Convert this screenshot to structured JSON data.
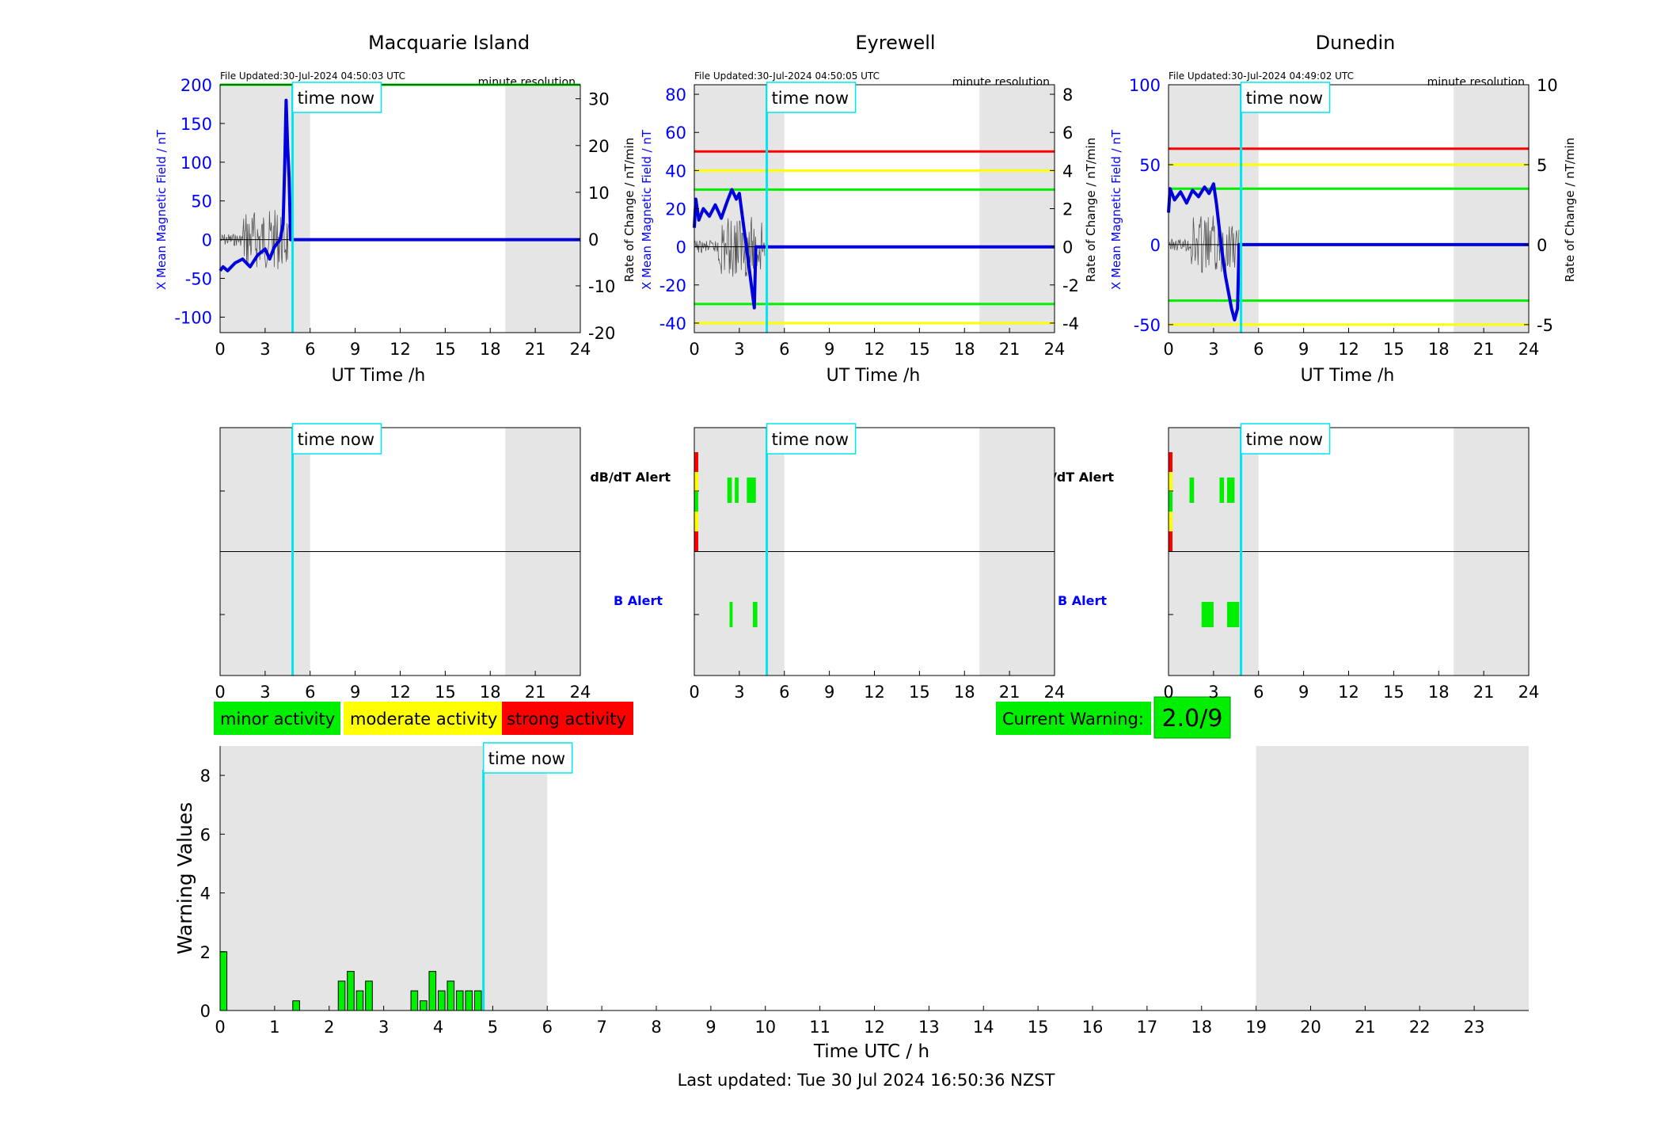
{
  "colors": {
    "shade": "#e5e5e5",
    "field_line": "#0000dd",
    "rate_line": "#555555",
    "now_line": "#00e5ee",
    "red": "#ff0000",
    "yellow": "#ffff00",
    "green": "#00ee00",
    "alert_label_blue": "#0000ff"
  },
  "stations": [
    {
      "name": "Macquarie Island",
      "file_updated": "File Updated:30-Jul-2024 04:50:03 UTC",
      "resolution": "minute resolution",
      "now_label": "time now",
      "now_h": 4.83,
      "shaded_intervals": [
        [
          0,
          6
        ],
        [
          19,
          24
        ]
      ],
      "ylabel_left": "X Mean Magnetic Field / nT",
      "ylabel_right": "Rate of Change / nT/min",
      "xlabel": "UT Time /h",
      "ylim": [
        -120,
        200
      ],
      "yticks": [
        -100,
        -50,
        0,
        50,
        100,
        150,
        200
      ],
      "rate_ylim": [
        -20,
        33
      ],
      "rate_ticks": [
        -20,
        -10,
        0,
        10,
        20,
        30
      ],
      "thresholds": [
        {
          "value": 200,
          "color": "green"
        }
      ],
      "field_trace": [
        [
          0,
          -40
        ],
        [
          0.2,
          -35
        ],
        [
          0.5,
          -40
        ],
        [
          1,
          -30
        ],
        [
          1.5,
          -25
        ],
        [
          2,
          -35
        ],
        [
          2.5,
          -20
        ],
        [
          3,
          -12
        ],
        [
          3.3,
          -25
        ],
        [
          3.6,
          -10
        ],
        [
          3.8,
          -5
        ],
        [
          4,
          0
        ],
        [
          4.2,
          20
        ],
        [
          4.3,
          90
        ],
        [
          4.4,
          180
        ],
        [
          4.5,
          120
        ],
        [
          4.6,
          80
        ],
        [
          4.7,
          0
        ],
        [
          4.83,
          0
        ],
        [
          24,
          0
        ]
      ],
      "alerts": {
        "dbdt": [],
        "b": []
      },
      "alert_label_dbdt": "dB/dT Alert",
      "alert_label_b": "B Alert"
    },
    {
      "name": "Eyrewell",
      "file_updated": "File Updated:30-Jul-2024 04:50:05 UTC",
      "resolution": "minute resolution",
      "now_label": "time now",
      "now_h": 4.83,
      "shaded_intervals": [
        [
          0,
          6
        ],
        [
          19,
          24
        ]
      ],
      "ylabel_left": "X Mean Magnetic Field / nT",
      "ylabel_right": "Rate of Change / nT/min",
      "xlabel": "UT Time /h",
      "ylim": [
        -45,
        85
      ],
      "yticks": [
        -40,
        -20,
        0,
        20,
        40,
        60,
        80
      ],
      "rate_ylim": [
        -4.5,
        8.5
      ],
      "rate_ticks": [
        -4,
        -2,
        0,
        2,
        4,
        6,
        8
      ],
      "thresholds": [
        {
          "value": 50,
          "color": "red"
        },
        {
          "value": 40,
          "color": "yellow"
        },
        {
          "value": 30,
          "color": "green"
        },
        {
          "value": -30,
          "color": "green"
        },
        {
          "value": -40,
          "color": "yellow"
        }
      ],
      "field_trace": [
        [
          0,
          10
        ],
        [
          0.1,
          25
        ],
        [
          0.3,
          14
        ],
        [
          0.6,
          20
        ],
        [
          1,
          16
        ],
        [
          1.4,
          22
        ],
        [
          1.8,
          15
        ],
        [
          2.2,
          24
        ],
        [
          2.5,
          30
        ],
        [
          2.8,
          25
        ],
        [
          3,
          28
        ],
        [
          3.3,
          10
        ],
        [
          3.6,
          -8
        ],
        [
          3.8,
          -20
        ],
        [
          4,
          -32
        ],
        [
          4.1,
          0
        ],
        [
          4.83,
          0
        ],
        [
          24,
          0
        ]
      ],
      "alerts": {
        "dbdt": [
          [
            2.2,
            2.5
          ],
          [
            2.7,
            2.95
          ],
          [
            3.5,
            4.1
          ]
        ],
        "b": [
          [
            2.35,
            2.55
          ],
          [
            3.9,
            4.2
          ]
        ]
      },
      "alert_label_dbdt": "dB/dT Alert",
      "alert_label_b": "B Alert"
    },
    {
      "name": "Dunedin",
      "file_updated": "File Updated:30-Jul-2024 04:49:02 UTC",
      "resolution": "minute resolution",
      "now_label": "time now",
      "now_h": 4.83,
      "shaded_intervals": [
        [
          0,
          6
        ],
        [
          19,
          24
        ]
      ],
      "ylabel_left": "X Mean Magnetic Field / nT",
      "ylabel_right": "Rate of Change / nT/min",
      "xlabel": "UT Time /h",
      "ylim": [
        -55,
        100
      ],
      "yticks": [
        -50,
        0,
        50,
        100
      ],
      "rate_ylim": [
        -5.5,
        10
      ],
      "rate_ticks": [
        -5,
        0,
        5,
        10
      ],
      "thresholds": [
        {
          "value": 60,
          "color": "red"
        },
        {
          "value": 50,
          "color": "yellow"
        },
        {
          "value": 35,
          "color": "green"
        },
        {
          "value": -35,
          "color": "green"
        },
        {
          "value": -50,
          "color": "yellow"
        }
      ],
      "field_trace": [
        [
          0,
          20
        ],
        [
          0.1,
          35
        ],
        [
          0.4,
          28
        ],
        [
          0.8,
          33
        ],
        [
          1.2,
          26
        ],
        [
          1.6,
          34
        ],
        [
          2,
          30
        ],
        [
          2.4,
          36
        ],
        [
          2.7,
          32
        ],
        [
          3,
          38
        ],
        [
          3.2,
          25
        ],
        [
          3.5,
          0
        ],
        [
          3.8,
          -20
        ],
        [
          4,
          -30
        ],
        [
          4.2,
          -40
        ],
        [
          4.4,
          -47
        ],
        [
          4.6,
          -40
        ],
        [
          4.7,
          0
        ],
        [
          4.83,
          0
        ],
        [
          24,
          0
        ]
      ],
      "alerts": {
        "dbdt": [
          [
            1.4,
            1.7
          ],
          [
            3.4,
            3.7
          ],
          [
            3.9,
            4.4
          ]
        ],
        "b": [
          [
            2.2,
            3.0
          ],
          [
            3.9,
            4.7
          ]
        ]
      },
      "alert_label_dbdt": "dB/dT Alert",
      "alert_label_b": "B Alert"
    }
  ],
  "legend": [
    {
      "label": "minor activity",
      "color": "green"
    },
    {
      "label": "moderate activity",
      "color": "yellow"
    },
    {
      "label": "strong activity",
      "color": "red"
    }
  ],
  "current_warning": {
    "label": "Current Warning:",
    "value": "2.0/9"
  },
  "chart_data": {
    "type": "bar",
    "title": "",
    "xlabel": "Time UTC / h",
    "ylabel": "Warning Values",
    "xlim": [
      0,
      24
    ],
    "ylim": [
      0,
      9
    ],
    "xticks": [
      "0",
      "1",
      "2",
      "3",
      "4",
      "5",
      "6",
      "7",
      "8",
      "9",
      "10",
      "11",
      "12",
      "13",
      "14",
      "15",
      "16",
      "17",
      "18",
      "19",
      "20",
      "21",
      "22",
      "23"
    ],
    "yticks": [
      0,
      2,
      4,
      6,
      8
    ],
    "bin_width_h": 0.125,
    "bar_start_h": [
      0.0,
      1.333,
      2.167,
      2.333,
      2.5,
      2.667,
      3.5,
      3.667,
      3.833,
      4.0,
      4.167,
      4.333,
      4.5,
      4.667
    ],
    "values": [
      2.0,
      0.33,
      1.0,
      1.33,
      0.67,
      1.0,
      0.67,
      0.33,
      1.33,
      0.67,
      1.0,
      0.67,
      0.67,
      0.67
    ],
    "now_h": 4.83,
    "now_label": "time now",
    "shaded_intervals": [
      [
        0,
        6
      ],
      [
        19,
        24
      ]
    ]
  },
  "footer": "Last updated: Tue 30 Jul 2024 16:50:36 NZST"
}
